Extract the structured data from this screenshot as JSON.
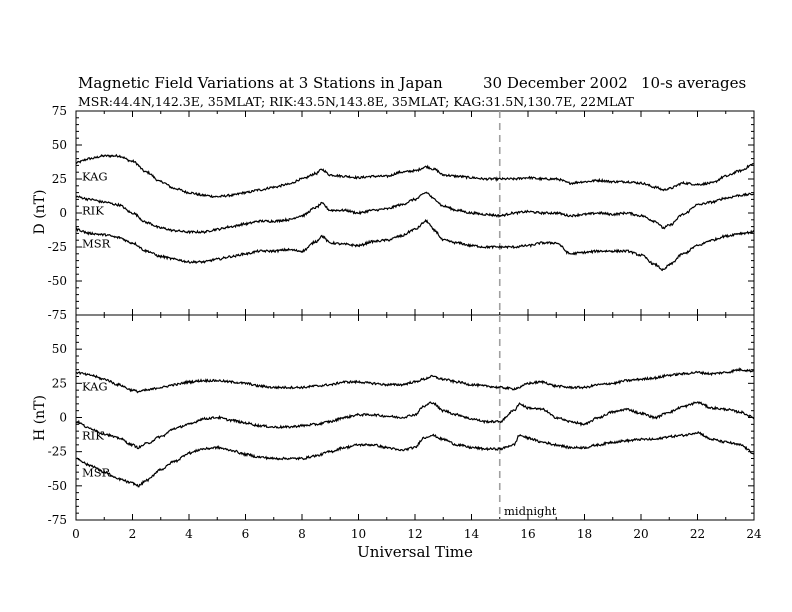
{
  "header": {
    "title": "Magnetic Field Variations at 3 Stations in Japan",
    "date": "30 December 2002",
    "averaging": "10-s averages",
    "stations_line": "MSR:44.4N,142.3E, 35MLAT;  RIK:43.5N,143.8E, 35MLAT;  KAG:31.5N,130.7E, 22MLAT"
  },
  "chart_data": [
    {
      "type": "line",
      "panel": "D",
      "ylabel": "D (nT)",
      "xlabel": "",
      "xlim": [
        0,
        24
      ],
      "ylim": [
        -75,
        75
      ],
      "yticks": [
        "75",
        "50",
        "25",
        "0",
        "-25",
        "-50",
        "-75"
      ],
      "x": [
        0,
        0.5,
        1,
        1.5,
        2,
        2.5,
        3,
        3.5,
        4,
        4.5,
        5,
        5.5,
        6,
        6.5,
        7,
        7.5,
        8,
        8.5,
        8.7,
        9,
        9.5,
        10,
        10.5,
        11,
        11.5,
        12,
        12.4,
        12.7,
        13,
        13.5,
        14,
        14.5,
        15,
        15.5,
        16,
        16.5,
        17,
        17.5,
        18,
        18.5,
        19,
        19.5,
        20,
        20.5,
        20.8,
        21,
        21.5,
        22,
        22.5,
        23,
        23.5,
        24
      ],
      "series": [
        {
          "name": "KAG",
          "values": [
            37,
            40,
            42,
            42,
            38,
            30,
            23,
            18,
            15,
            13,
            12,
            13,
            15,
            17,
            19,
            21,
            25,
            29,
            32,
            28,
            27,
            26,
            27,
            27,
            30,
            31,
            34,
            32,
            28,
            27,
            26,
            25,
            25,
            25,
            26,
            25,
            25,
            22,
            23,
            24,
            23,
            23,
            22,
            19,
            17,
            18,
            22,
            21,
            22,
            27,
            31,
            36
          ]
        },
        {
          "name": "RIK",
          "values": [
            12,
            10,
            8,
            6,
            0,
            -7,
            -11,
            -13,
            -14,
            -14,
            -12,
            -10,
            -8,
            -6,
            -6,
            -5,
            -2,
            4,
            7,
            2,
            2,
            0,
            2,
            3,
            6,
            10,
            15,
            10,
            5,
            2,
            0,
            -1,
            -2,
            0,
            1,
            0,
            0,
            -2,
            -1,
            0,
            -1,
            0,
            -2,
            -6,
            -11,
            -9,
            -1,
            6,
            8,
            11,
            13,
            14
          ]
        },
        {
          "name": "MSR",
          "values": [
            -12,
            -15,
            -16,
            -18,
            -22,
            -28,
            -32,
            -34,
            -36,
            -36,
            -34,
            -32,
            -30,
            -28,
            -28,
            -27,
            -28,
            -21,
            -17,
            -22,
            -23,
            -24,
            -21,
            -20,
            -17,
            -12,
            -6,
            -13,
            -20,
            -22,
            -24,
            -25,
            -25,
            -25,
            -24,
            -22,
            -22,
            -30,
            -29,
            -28,
            -28,
            -28,
            -31,
            -38,
            -42,
            -38,
            -30,
            -24,
            -20,
            -17,
            -15,
            -14
          ]
        }
      ]
    },
    {
      "type": "line",
      "panel": "H",
      "ylabel": "H (nT)",
      "xlabel": "Universal Time",
      "xlim": [
        0,
        24
      ],
      "ylim": [
        -75,
        75
      ],
      "yticks": [
        "50",
        "25",
        "0",
        "-25",
        "-50",
        "-75"
      ],
      "xticks": [
        0,
        2,
        4,
        6,
        8,
        10,
        12,
        14,
        16,
        18,
        20,
        22,
        24
      ],
      "x": [
        0,
        0.5,
        1,
        1.5,
        2,
        2.2,
        2.5,
        3,
        3.5,
        4,
        4.5,
        5,
        5.5,
        6,
        6.5,
        7,
        7.5,
        8,
        8.5,
        9,
        9.5,
        10,
        10.5,
        11,
        11.5,
        12,
        12.3,
        12.6,
        13,
        13.5,
        14,
        14.5,
        15,
        15.5,
        15.7,
        16,
        16.5,
        17,
        17.5,
        18,
        18.5,
        19,
        19.5,
        20,
        20.5,
        21,
        21.5,
        22,
        22.5,
        23,
        23.5,
        24
      ],
      "series": [
        {
          "name": "KAG",
          "values": [
            33,
            31,
            28,
            24,
            20,
            19,
            20,
            22,
            24,
            26,
            27,
            27,
            26,
            25,
            23,
            22,
            22,
            22,
            23,
            24,
            26,
            26,
            25,
            24,
            24,
            26,
            28,
            30,
            28,
            26,
            24,
            23,
            22,
            21,
            22,
            25,
            26,
            23,
            22,
            22,
            24,
            25,
            27,
            28,
            29,
            31,
            32,
            33,
            32,
            33,
            35,
            34
          ]
        },
        {
          "name": "RIK",
          "values": [
            -3,
            -8,
            -12,
            -15,
            -20,
            -22,
            -19,
            -14,
            -8,
            -5,
            -1,
            0,
            -2,
            -4,
            -6,
            -7,
            -7,
            -6,
            -5,
            -3,
            0,
            2,
            2,
            1,
            0,
            2,
            8,
            11,
            5,
            2,
            -1,
            -3,
            -3,
            5,
            10,
            7,
            6,
            0,
            -3,
            -5,
            0,
            4,
            6,
            3,
            0,
            4,
            8,
            11,
            7,
            6,
            4,
            0
          ]
        },
        {
          "name": "MSR",
          "values": [
            -30,
            -35,
            -40,
            -45,
            -48,
            -50,
            -46,
            -38,
            -32,
            -26,
            -23,
            -22,
            -24,
            -27,
            -29,
            -30,
            -30,
            -30,
            -28,
            -25,
            -22,
            -20,
            -20,
            -22,
            -24,
            -22,
            -15,
            -13,
            -16,
            -20,
            -22,
            -23,
            -23,
            -20,
            -13,
            -15,
            -18,
            -20,
            -22,
            -22,
            -20,
            -18,
            -17,
            -16,
            -16,
            -14,
            -13,
            -11,
            -16,
            -18,
            -20,
            -26
          ]
        }
      ]
    }
  ],
  "annotations": {
    "midnight_label": "midnight",
    "midnight_ut": 15
  },
  "colors": {
    "trace": "#000000",
    "midnight_line": "#a0a0a0",
    "background": "#ffffff"
  }
}
